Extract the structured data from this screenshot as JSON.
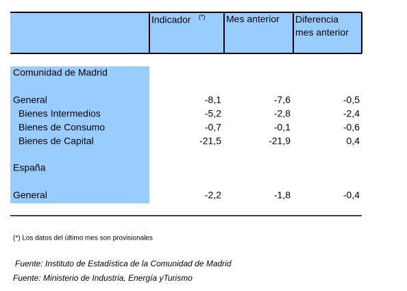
{
  "table": {
    "header": {
      "columns": [
        "Indicador",
        "Mes anterior",
        "Diferencia mes anterior"
      ],
      "note_mark": "(*)"
    },
    "rows": [
      {
        "label": "Comunidad de Madrid"
      },
      {
        "label": "General",
        "values": [
          "-8,1",
          "-7,6",
          "-0,5"
        ]
      },
      {
        "label": "Bienes Intermedios",
        "values": [
          "-5,2",
          "-2,8",
          "-2,4"
        ]
      },
      {
        "label": "Bienes de Consumo",
        "values": [
          "-0,7",
          "-0,1",
          "-0,6"
        ]
      },
      {
        "label": "Bienes de Capital",
        "values": [
          "-21,5",
          "-21,9",
          "0,4"
        ]
      },
      {
        "label": "España"
      },
      {
        "label": "General",
        "values": [
          "-2,2",
          "-1,8",
          "-0,4"
        ]
      }
    ]
  },
  "footnote": "(*) Los datos del último mes son provisionales",
  "sources": [
    "Fuente: Instituto de Estadística de la Comunidad de Madrid",
    "Fuente: Ministerio de Industria, Energía yTurismo"
  ]
}
